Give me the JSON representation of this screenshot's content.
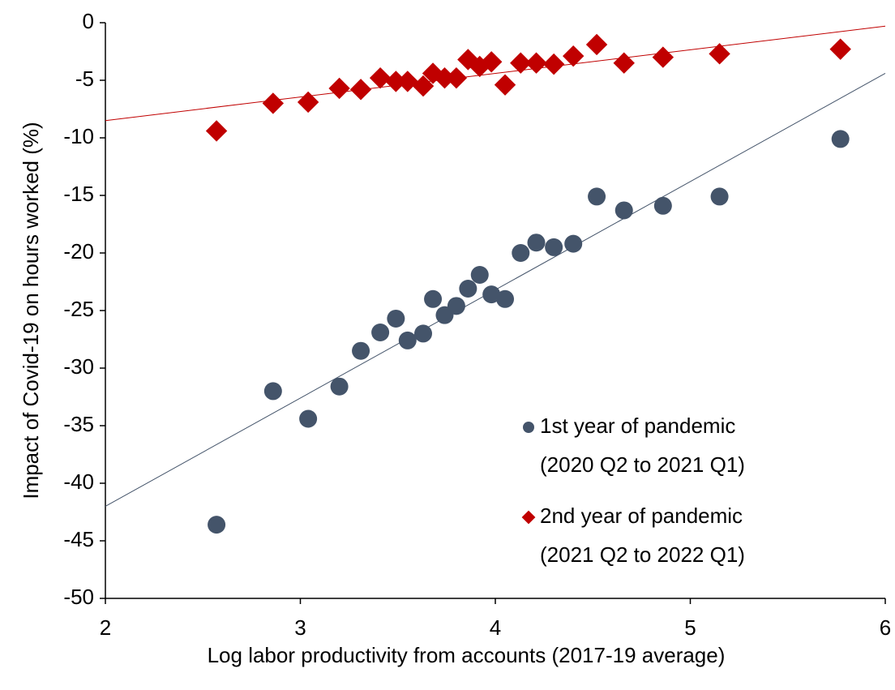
{
  "chart_data": {
    "type": "scatter",
    "xlabel": "Log labor productivity from accounts (2017-19 average)",
    "ylabel": "Impact of Covid-19 on hours worked (%)",
    "xlim": [
      2,
      6
    ],
    "xticks": [
      2,
      3,
      4,
      5,
      6
    ],
    "ylim": [
      -50,
      0
    ],
    "yticks": [
      0,
      -5,
      -10,
      -15,
      -20,
      -25,
      -30,
      -35,
      -40,
      -45,
      -50
    ],
    "grid": false,
    "legend": "lower right",
    "series": [
      {
        "name": [
          "1st year of pandemic",
          "(2020 Q2 to 2021 Q1)"
        ],
        "color": "#44546a",
        "marker": "circle",
        "x": [
          2.57,
          2.86,
          3.04,
          3.2,
          3.31,
          3.41,
          3.49,
          3.55,
          3.63,
          3.68,
          3.74,
          3.8,
          3.86,
          3.92,
          3.98,
          4.05,
          4.13,
          4.21,
          4.3,
          4.4,
          4.52,
          4.66,
          4.86,
          5.15,
          5.77
        ],
        "values": [
          -43.6,
          -32,
          -34.4,
          -31.6,
          -28.5,
          -26.9,
          -25.7,
          -27.6,
          -27,
          -24,
          -25.4,
          -24.6,
          -23.1,
          -21.9,
          -23.6,
          -24,
          -20,
          -19.1,
          -19.5,
          -19.2,
          -15.1,
          -16.3,
          -15.9,
          -15.1,
          -10.1
        ],
        "trend": {
          "x": [
            2,
            6
          ],
          "y": [
            -42,
            -4.4
          ]
        }
      },
      {
        "name": [
          "2nd year of pandemic",
          "(2021 Q2 to 2022 Q1)"
        ],
        "color": "#c00000",
        "marker": "diamond",
        "x": [
          2.57,
          2.86,
          3.04,
          3.2,
          3.31,
          3.41,
          3.49,
          3.55,
          3.63,
          3.68,
          3.74,
          3.8,
          3.86,
          3.92,
          3.98,
          4.05,
          4.13,
          4.21,
          4.3,
          4.4,
          4.52,
          4.66,
          4.86,
          5.15,
          5.77
        ],
        "values": [
          -9.4,
          -7,
          -6.9,
          -5.7,
          -5.8,
          -4.8,
          -5.1,
          -5.1,
          -5.5,
          -4.4,
          -4.8,
          -4.8,
          -3.2,
          -3.8,
          -3.4,
          -5.4,
          -3.5,
          -3.5,
          -3.6,
          -2.9,
          -1.9,
          -3.5,
          -3,
          -2.7,
          -2.3
        ],
        "trend": {
          "x": [
            2,
            6
          ],
          "y": [
            -8.5,
            -0.3
          ]
        }
      }
    ]
  }
}
